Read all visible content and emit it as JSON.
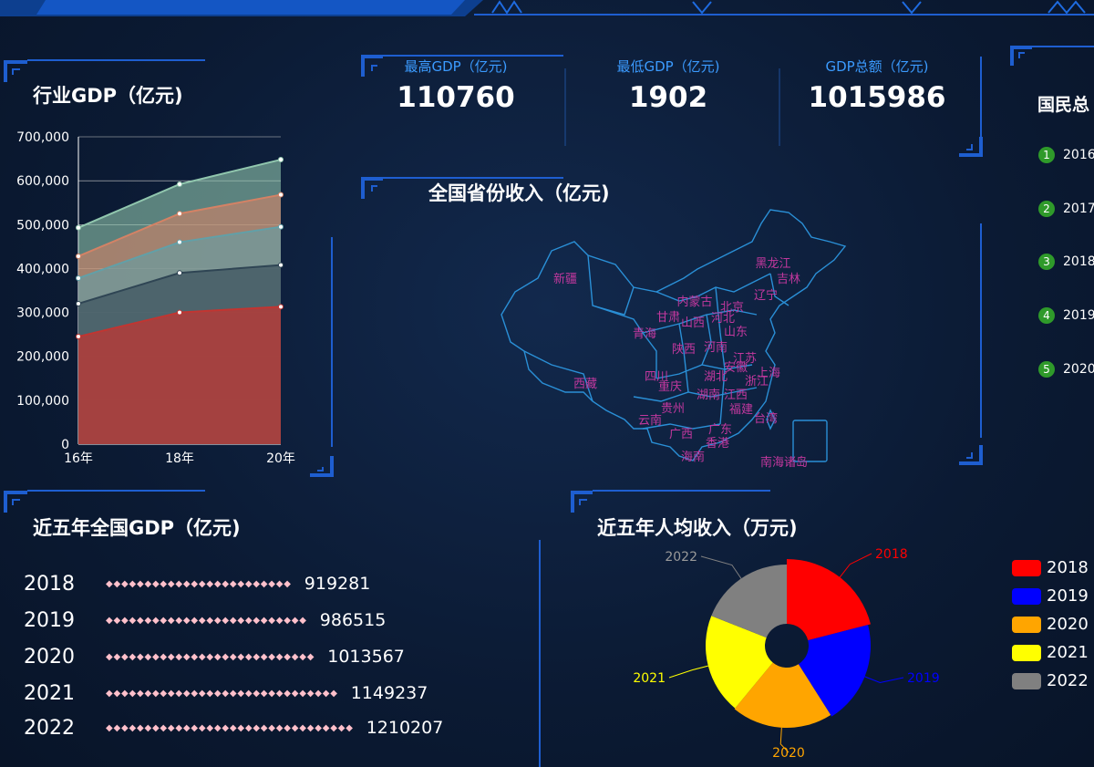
{
  "kpis": [
    {
      "label": "最高GDP（亿元)",
      "value": "110760"
    },
    {
      "label": "最低GDP（亿元)",
      "value": "1902"
    },
    {
      "label": "GDP总额（亿元)",
      "value": "1015986"
    }
  ],
  "panels": {
    "industry": "行业GDP（亿元)",
    "map": "全国省份收入（亿元)",
    "national": "近五年全国GDP（亿元)",
    "income": "近五年人均收入（万元)",
    "rank": "国民总"
  },
  "rank_items": [
    {
      "num": "1",
      "text": "2016"
    },
    {
      "num": "2",
      "text": "2017"
    },
    {
      "num": "3",
      "text": "2018"
    },
    {
      "num": "4",
      "text": "2019"
    },
    {
      "num": "5",
      "text": "2020"
    }
  ],
  "map_labels": [
    "新疆",
    "西藏",
    "青海",
    "甘肃",
    "内蒙古",
    "黑龙江",
    "吉林",
    "辽宁",
    "山西",
    "河北",
    "北京",
    "山东",
    "陕西",
    "河南",
    "四川",
    "重庆",
    "湖北",
    "安徽",
    "江苏",
    "上海",
    "浙江",
    "湖南",
    "江西",
    "贵州",
    "云南",
    "广西",
    "广东",
    "福建",
    "台湾",
    "海南",
    "香港",
    "南海诸岛"
  ],
  "chart_data": [
    {
      "type": "area",
      "x": [
        "16年",
        "18年",
        "20年"
      ],
      "ylim": [
        0,
        700000
      ],
      "yticks": [
        "0",
        "100,000",
        "200,000",
        "300,000",
        "400,000",
        "500,000",
        "600,000",
        "700,000"
      ],
      "series": [
        {
          "values": [
            245000,
            300000,
            313000
          ],
          "color": "#c23531"
        },
        {
          "values": [
            320000,
            390000,
            408000
          ],
          "color": "#2f4554"
        },
        {
          "values": [
            378000,
            460000,
            495000
          ],
          "color": "#61a0a8"
        },
        {
          "values": [
            428000,
            525000,
            568000
          ],
          "color": "#d48265"
        },
        {
          "values": [
            493000,
            592000,
            648000
          ],
          "color": "#91c7ae"
        }
      ]
    },
    {
      "type": "bar",
      "categories": [
        "2018",
        "2019",
        "2020",
        "2021",
        "2022"
      ],
      "values": [
        919281,
        986515,
        1013567,
        1149237,
        1210207
      ]
    },
    {
      "type": "pie",
      "categories": [
        "2018",
        "2019",
        "2020",
        "2021",
        "2022"
      ],
      "values": [
        21,
        20,
        20,
        20,
        19
      ],
      "colors": [
        "#ff0000",
        "#0000ff",
        "#ffa500",
        "#ffff00",
        "#808080"
      ]
    }
  ]
}
